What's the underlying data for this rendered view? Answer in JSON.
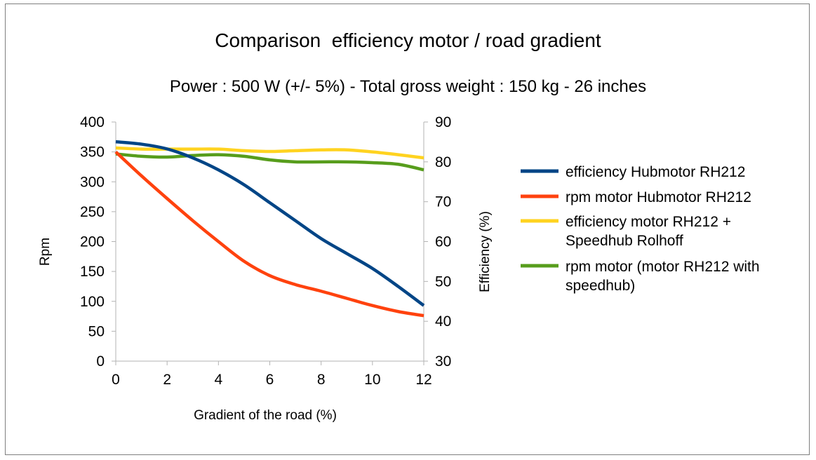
{
  "chart_data": {
    "type": "line",
    "title": "Comparison  efficiency motor / road gradient",
    "subtitle": "Power : 500 W (+/- 5%) - Total gross weight : 150 kg - 26 inches",
    "xlabel": "Gradient of the road (%)",
    "ylabel": "Rpm",
    "y2label": "Efficiency (%)",
    "xlim": [
      0,
      12
    ],
    "ylim": [
      0,
      400
    ],
    "y2lim": [
      30,
      90
    ],
    "x_ticks": [
      "0",
      "2",
      "4",
      "6",
      "8",
      "10",
      "12"
    ],
    "y_ticks": [
      "0",
      "50",
      "100",
      "150",
      "200",
      "250",
      "300",
      "350",
      "400"
    ],
    "y2_ticks": [
      "30",
      "40",
      "50",
      "60",
      "70",
      "80",
      "90"
    ],
    "grid": false,
    "legend_position": "right",
    "x": [
      0,
      1,
      2,
      3,
      4,
      5,
      6,
      7,
      8,
      9,
      10,
      11,
      12
    ],
    "series": [
      {
        "name": "efficiency Hubmotor RH212",
        "color": "#004586",
        "axis": "left",
        "values": [
          367,
          363,
          355,
          340,
          320,
          295,
          265,
          235,
          205,
          180,
          155,
          125,
          93
        ]
      },
      {
        "name": "rpm motor Hubmotor RH212",
        "color": "#ff420e",
        "axis": "left",
        "values": [
          350,
          310,
          272,
          235,
          200,
          167,
          143,
          128,
          117,
          105,
          93,
          83,
          76
        ]
      },
      {
        "name": "efficiency motor RH212 + Speedhub Rolhoff",
        "color": "#ffd320",
        "axis": "right",
        "values": [
          83.5,
          83.2,
          83.2,
          83.2,
          83.2,
          82.8,
          82.6,
          82.8,
          83.0,
          83.0,
          82.5,
          81.8,
          81.0
        ]
      },
      {
        "name": "rpm motor (motor RH212 with speedhub)",
        "color": "#579d1c",
        "axis": "right",
        "values": [
          82.0,
          81.4,
          81.2,
          81.6,
          81.8,
          81.4,
          80.5,
          80.0,
          80.0,
          80.0,
          79.8,
          79.4,
          78.0
        ]
      }
    ]
  }
}
